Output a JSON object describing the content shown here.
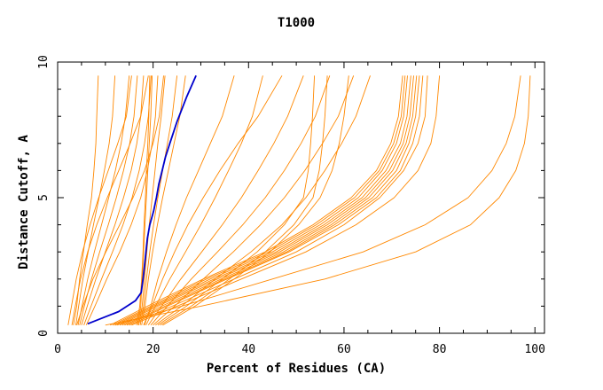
{
  "chart_data": {
    "type": "line",
    "title": "T1000",
    "xlabel": "Percent of Residues (CA)",
    "ylabel": "Distance Cutoff, A",
    "xlim": [
      0,
      102
    ],
    "ylim": [
      0,
      10
    ],
    "xticks": [
      0,
      20,
      40,
      60,
      80,
      100
    ],
    "yticks": [
      0,
      5,
      10
    ],
    "grid": false,
    "highlight_color": "#0000cc",
    "series_color": "#ff8800",
    "highlight": {
      "x": [
        6.3,
        12.8,
        16.3,
        17.5,
        17.9,
        18.2,
        18.5,
        18.8,
        19.3,
        20.1,
        20.7,
        21.2,
        21.9,
        22.6,
        23.5,
        25.0,
        27.0,
        29.0
      ],
      "y": [
        0.35,
        0.8,
        1.2,
        1.5,
        2.0,
        2.5,
        3.0,
        3.5,
        4.0,
        4.5,
        5.0,
        5.5,
        6.0,
        6.5,
        7.0,
        7.8,
        8.7,
        9.5
      ]
    },
    "series": [
      {
        "x": [
          3.3,
          4.0,
          4.6,
          5.4,
          6.2,
          7.1,
          7.6,
          8.0,
          8.2,
          8.5
        ],
        "y": [
          0.3,
          1.0,
          2.0,
          3.0,
          4.0,
          5.0,
          6.0,
          7.0,
          8.0,
          9.5
        ]
      },
      {
        "x": [
          3.8,
          4.4,
          5.3,
          6.4,
          7.5,
          8.7,
          9.8,
          10.8,
          11.5,
          12.0
        ],
        "y": [
          0.3,
          1.0,
          2.0,
          3.0,
          4.0,
          5.0,
          6.0,
          7.0,
          8.0,
          9.5
        ]
      },
      {
        "x": [
          4.3,
          5.1,
          6.3,
          7.7,
          9.2,
          10.7,
          12.1,
          13.3,
          14.2,
          15.0
        ],
        "y": [
          0.3,
          1.0,
          2.0,
          3.0,
          4.0,
          5.0,
          6.0,
          7.0,
          8.0,
          9.5
        ]
      },
      {
        "x": [
          4.6,
          5.6,
          7.1,
          8.8,
          10.6,
          12.3,
          13.8,
          15.1,
          16.0,
          16.7
        ],
        "y": [
          0.3,
          1.0,
          2.0,
          3.0,
          4.0,
          5.0,
          6.0,
          7.0,
          8.0,
          9.5
        ]
      },
      {
        "x": [
          5.0,
          6.2,
          8.0,
          10.0,
          12.0,
          13.8,
          15.4,
          16.6,
          17.4,
          18.0
        ],
        "y": [
          0.3,
          1.0,
          2.0,
          3.0,
          4.0,
          5.0,
          6.0,
          7.0,
          8.0,
          9.5
        ]
      },
      {
        "x": [
          5.5,
          7.0,
          9.2,
          11.5,
          13.7,
          15.6,
          17.1,
          18.2,
          19.0,
          19.6
        ],
        "y": [
          0.3,
          1.0,
          2.0,
          3.0,
          4.0,
          5.0,
          6.0,
          7.0,
          8.0,
          9.5
        ]
      },
      {
        "x": [
          6.0,
          7.8,
          10.3,
          13.0,
          15.4,
          17.4,
          18.8,
          19.8,
          20.5,
          21.0
        ],
        "y": [
          0.3,
          1.0,
          2.0,
          3.0,
          4.0,
          5.0,
          6.0,
          7.0,
          8.0,
          9.5
        ]
      },
      {
        "x": [
          3.0,
          3.7,
          4.8,
          6.3,
          8.2,
          10.4,
          12.8,
          15.2,
          17.4,
          19.0
        ],
        "y": [
          0.3,
          1.0,
          2.0,
          3.0,
          4.0,
          5.0,
          6.0,
          7.0,
          8.0,
          9.5
        ]
      },
      {
        "x": [
          4.0,
          5.3,
          7.4,
          10.1,
          13.0,
          15.8,
          18.2,
          20.0,
          21.3,
          22.2
        ],
        "y": [
          0.3,
          1.0,
          2.0,
          3.0,
          4.0,
          5.0,
          6.0,
          7.0,
          8.0,
          9.5
        ]
      },
      {
        "x": [
          2.2,
          2.9,
          3.9,
          5.2,
          6.8,
          8.6,
          10.6,
          12.6,
          14.4,
          15.5
        ],
        "y": [
          0.3,
          1.0,
          2.0,
          3.0,
          4.0,
          5.0,
          6.0,
          7.0,
          8.0,
          9.5
        ]
      },
      {
        "x": [
          16.8,
          17.4,
          17.7,
          18.0,
          18.3,
          18.6,
          18.9,
          19.2,
          19.5,
          19.8
        ],
        "y": [
          0.3,
          1.0,
          2.0,
          3.0,
          4.0,
          5.0,
          6.0,
          7.0,
          8.0,
          9.5
        ]
      },
      {
        "x": [
          17.0,
          17.7,
          18.2,
          18.7,
          19.2,
          19.8,
          20.4,
          21.0,
          21.7,
          22.5
        ],
        "y": [
          0.3,
          1.0,
          2.0,
          3.0,
          4.0,
          5.0,
          6.0,
          7.0,
          8.0,
          9.5
        ]
      },
      {
        "x": [
          17.3,
          18.0,
          18.6,
          19.3,
          20.1,
          21.0,
          22.0,
          23.0,
          24.0,
          25.0
        ],
        "y": [
          0.3,
          1.0,
          2.0,
          3.0,
          4.0,
          5.0,
          6.0,
          7.0,
          8.0,
          9.5
        ]
      },
      {
        "x": [
          17.6,
          18.3,
          19.0,
          19.9,
          20.9,
          22.0,
          23.2,
          24.4,
          25.6,
          26.8
        ],
        "y": [
          0.3,
          1.0,
          2.0,
          3.0,
          4.0,
          5.0,
          6.0,
          7.0,
          8.0,
          9.5
        ]
      },
      {
        "x": [
          16.5,
          17.2,
          17.6,
          17.9,
          18.1,
          18.4,
          18.6,
          18.9,
          19.1,
          19.3
        ],
        "y": [
          0.3,
          1.0,
          2.0,
          3.0,
          4.0,
          5.0,
          6.0,
          7.0,
          8.0,
          9.5
        ]
      },
      {
        "x": [
          18.2,
          19.5,
          21.0,
          22.8,
          24.8,
          27.0,
          29.5,
          32.0,
          34.5,
          37.0
        ],
        "y": [
          0.3,
          1.0,
          2.0,
          3.0,
          4.0,
          5.0,
          6.0,
          7.0,
          8.0,
          9.5
        ]
      },
      {
        "x": [
          18.5,
          20.5,
          23.5,
          26.8,
          30.0,
          33.0,
          35.8,
          38.5,
          40.8,
          43.0
        ],
        "y": [
          0.3,
          1.0,
          2.0,
          3.0,
          4.0,
          5.0,
          6.0,
          7.0,
          8.0,
          9.5
        ]
      },
      {
        "x": [
          19.0,
          21.8,
          25.8,
          30.2,
          34.5,
          38.5,
          42.0,
          45.3,
          48.2,
          51.5
        ],
        "y": [
          0.3,
          1.0,
          2.0,
          3.0,
          4.0,
          5.0,
          6.0,
          7.0,
          8.0,
          9.5
        ]
      },
      {
        "x": [
          19.5,
          23.0,
          28.0,
          33.5,
          38.8,
          43.5,
          47.5,
          51.0,
          54.0,
          57.0
        ],
        "y": [
          0.3,
          1.0,
          2.0,
          3.0,
          4.0,
          5.0,
          6.0,
          7.0,
          8.0,
          9.5
        ]
      },
      {
        "x": [
          20.0,
          24.5,
          30.5,
          36.8,
          42.5,
          47.5,
          51.8,
          55.5,
          58.8,
          62.0
        ],
        "y": [
          0.3,
          1.0,
          2.0,
          3.0,
          4.0,
          5.0,
          6.0,
          7.0,
          8.0,
          9.5
        ]
      },
      {
        "x": [
          18.0,
          19.8,
          22.0,
          24.5,
          27.3,
          30.5,
          34.0,
          37.8,
          42.0,
          47.0
        ],
        "y": [
          0.3,
          1.0,
          2.0,
          3.0,
          4.0,
          5.0,
          6.0,
          7.0,
          8.0,
          9.5
        ]
      },
      {
        "x": [
          21.0,
          27.0,
          34.5,
          41.8,
          47.5,
          51.5,
          52.5,
          53.0,
          53.4,
          53.8
        ],
        "y": [
          0.3,
          1.0,
          2.0,
          3.0,
          4.0,
          5.0,
          6.0,
          7.0,
          8.0,
          9.5
        ]
      },
      {
        "x": [
          21.5,
          28.0,
          36.0,
          43.5,
          49.5,
          53.5,
          54.8,
          55.5,
          56.0,
          56.5
        ],
        "y": [
          0.3,
          1.0,
          2.0,
          3.0,
          4.0,
          5.0,
          6.0,
          7.0,
          8.0,
          9.5
        ]
      },
      {
        "x": [
          22.0,
          28.8,
          37.0,
          44.5,
          50.5,
          55.0,
          57.5,
          59.0,
          60.0,
          61.0
        ],
        "y": [
          0.3,
          1.0,
          2.0,
          3.0,
          4.0,
          5.0,
          6.0,
          7.0,
          8.0,
          9.5
        ]
      },
      {
        "x": [
          20.5,
          26.0,
          33.0,
          40.5,
          47.0,
          52.0,
          56.0,
          59.5,
          62.5,
          65.5
        ],
        "y": [
          0.3,
          1.0,
          2.0,
          3.0,
          4.0,
          5.0,
          6.0,
          7.0,
          8.0,
          9.5
        ]
      },
      {
        "x": [
          12.0,
          20.0,
          32.0,
          45.0,
          55.0,
          63.0,
          68.0,
          71.0,
          72.5,
          73.3
        ],
        "y": [
          0.3,
          1.0,
          2.0,
          3.0,
          4.0,
          5.0,
          6.0,
          7.0,
          8.0,
          9.5
        ]
      },
      {
        "x": [
          12.5,
          20.5,
          32.8,
          45.8,
          55.8,
          63.8,
          68.8,
          71.8,
          73.2,
          74.0
        ],
        "y": [
          0.3,
          1.0,
          2.0,
          3.0,
          4.0,
          5.0,
          6.0,
          7.0,
          8.0,
          9.5
        ]
      },
      {
        "x": [
          13.0,
          21.0,
          33.5,
          46.5,
          56.5,
          64.5,
          69.5,
          72.4,
          73.8,
          74.6
        ],
        "y": [
          0.3,
          1.0,
          2.0,
          3.0,
          4.0,
          5.0,
          6.0,
          7.0,
          8.0,
          9.5
        ]
      },
      {
        "x": [
          13.5,
          21.8,
          34.3,
          47.3,
          57.3,
          65.2,
          70.2,
          73.0,
          74.4,
          75.2
        ],
        "y": [
          0.3,
          1.0,
          2.0,
          3.0,
          4.0,
          5.0,
          6.0,
          7.0,
          8.0,
          9.5
        ]
      },
      {
        "x": [
          14.0,
          22.5,
          35.0,
          48.0,
          58.0,
          66.0,
          71.0,
          73.6,
          75.0,
          75.8
        ],
        "y": [
          0.3,
          1.0,
          2.0,
          3.0,
          4.0,
          5.0,
          6.0,
          7.0,
          8.0,
          9.5
        ]
      },
      {
        "x": [
          11.5,
          19.5,
          31.2,
          44.2,
          54.2,
          62.2,
          67.4,
          70.4,
          72.0,
          72.8
        ],
        "y": [
          0.3,
          1.0,
          2.0,
          3.0,
          4.0,
          5.0,
          6.0,
          7.0,
          8.0,
          9.5
        ]
      },
      {
        "x": [
          14.5,
          23.0,
          35.5,
          48.5,
          58.8,
          66.8,
          71.8,
          74.4,
          75.8,
          76.5
        ],
        "y": [
          0.3,
          1.0,
          2.0,
          3.0,
          4.0,
          5.0,
          6.0,
          7.0,
          8.0,
          9.5
        ]
      },
      {
        "x": [
          11.0,
          18.8,
          30.5,
          43.5,
          53.5,
          61.5,
          66.8,
          69.8,
          71.4,
          72.3
        ],
        "y": [
          0.3,
          1.0,
          2.0,
          3.0,
          4.0,
          5.0,
          6.0,
          7.0,
          8.0,
          9.5
        ]
      },
      {
        "x": [
          15.0,
          24.0,
          37.0,
          50.0,
          60.0,
          67.5,
          72.5,
          75.5,
          77.0,
          77.5
        ],
        "y": [
          0.3,
          1.0,
          2.0,
          3.0,
          4.0,
          5.0,
          6.0,
          7.0,
          8.0,
          9.5
        ]
      },
      {
        "x": [
          15.5,
          25.0,
          38.5,
          52.0,
          62.5,
          70.5,
          75.5,
          78.2,
          79.3,
          80.0
        ],
        "y": [
          0.3,
          1.0,
          2.0,
          3.0,
          4.0,
          5.0,
          6.0,
          7.0,
          8.0,
          9.5
        ]
      },
      {
        "x": [
          12.0,
          26.0,
          45.0,
          64.0,
          77.0,
          86.0,
          91.0,
          94.0,
          95.8,
          97.0
        ],
        "y": [
          0.3,
          1.0,
          2.0,
          3.0,
          4.0,
          5.0,
          6.0,
          7.0,
          8.0,
          9.5
        ]
      },
      {
        "x": [
          10.0,
          30.0,
          56.0,
          75.0,
          86.5,
          92.5,
          96.0,
          97.8,
          98.6,
          99.0
        ],
        "y": [
          0.3,
          1.0,
          2.0,
          3.0,
          4.0,
          5.0,
          6.0,
          7.0,
          8.0,
          9.5
        ]
      }
    ]
  }
}
